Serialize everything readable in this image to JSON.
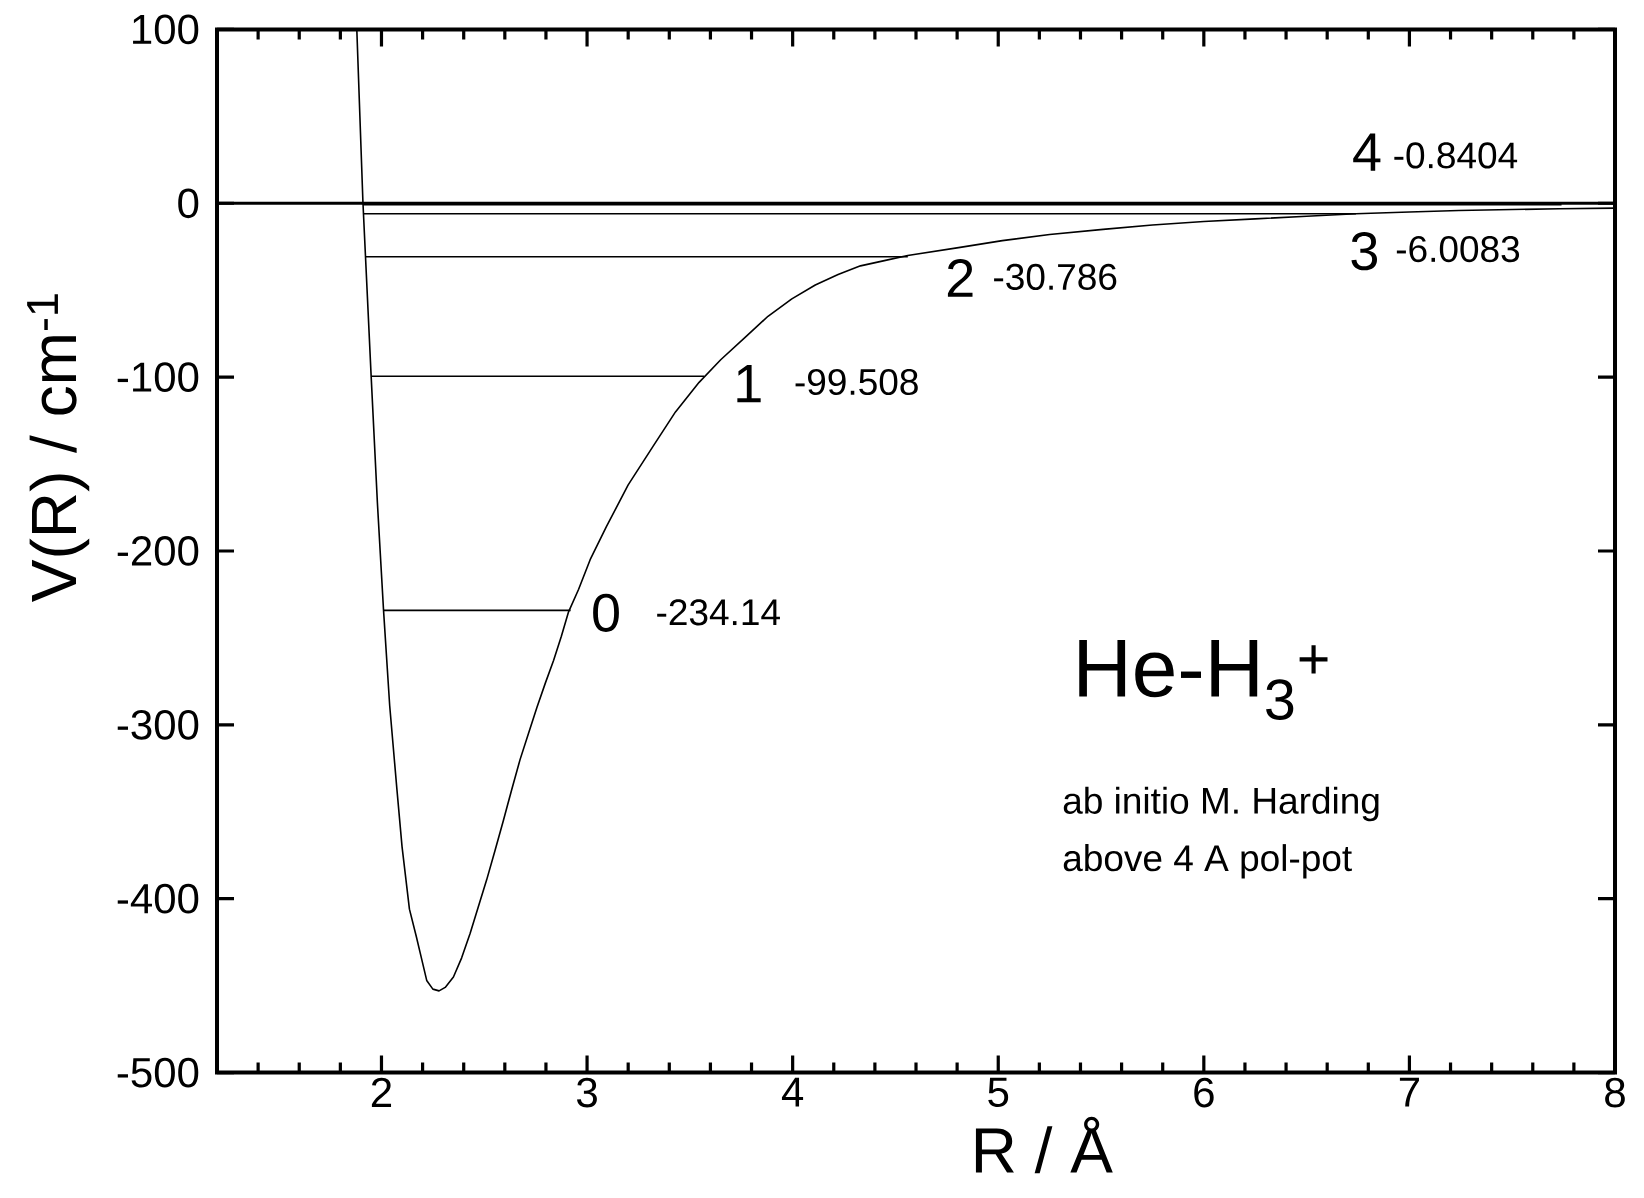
{
  "chart_data": {
    "type": "line",
    "xlabel": "R / Å",
    "ylabel": "V(R) / cm$^{-1}$",
    "annotations": [
      "He-H$_{3}$$^{+}$",
      "ab initio M. Harding",
      "above 4 A pol-pot",
      "-234.14",
      "-99.508",
      "-30.786",
      "-6.0083",
      "-0.8404"
    ],
    "xlim": [
      1.2,
      8
    ],
    "xticks": [
      {
        "value": 1.4,
        "label": null
      },
      {
        "value": 1.6,
        "label": null
      },
      {
        "value": 1.8,
        "label": null
      },
      2,
      {
        "value": 2.2,
        "label": null
      },
      {
        "value": 2.4,
        "label": null
      },
      {
        "value": 2.6,
        "label": null
      },
      {
        "value": 2.8,
        "label": null
      },
      3,
      {
        "value": 3.2,
        "label": null
      },
      {
        "value": 3.4,
        "label": null
      },
      {
        "value": 3.6,
        "label": null
      },
      {
        "value": 3.8,
        "label": null
      },
      4,
      {
        "value": 4.2,
        "label": null
      },
      {
        "value": 4.4,
        "label": null
      },
      {
        "value": 4.6,
        "label": null
      },
      {
        "value": 4.8,
        "label": null
      },
      5,
      {
        "value": 5.2,
        "label": null
      },
      {
        "value": 5.4,
        "label": null
      },
      {
        "value": 5.6,
        "label": null
      },
      {
        "value": 5.8,
        "label": null
      },
      6,
      {
        "value": 6.2,
        "label": null
      },
      {
        "value": 6.4,
        "label": null
      },
      {
        "value": 6.6,
        "label": null
      },
      {
        "value": 6.8,
        "label": null
      },
      7,
      {
        "value": 7.2,
        "label": null
      },
      {
        "value": 7.4,
        "label": null
      },
      {
        "value": 7.6,
        "label": null
      },
      {
        "value": 7.8,
        "label": null
      },
      8
    ],
    "ylim": [
      -500,
      100
    ],
    "yticks": [
      -500,
      -400,
      -300,
      -200,
      -100,
      0,
      100
    ],
    "marker": "none",
    "ref_lines": [
      {
        "axis": "y",
        "value": 0,
        "color": "#000000"
      }
    ],
    "series": [
      {
        "color": "#000000",
        "x": [
          1.88,
          1.895,
          1.91,
          1.93,
          1.95,
          1.98,
          2.01,
          2.04,
          2.075,
          2.1,
          2.136,
          2.17,
          2.188,
          2.22,
          2.25,
          2.28,
          2.31,
          2.35,
          2.39,
          2.431,
          2.47,
          2.512,
          2.553,
          2.593,
          2.634,
          2.674,
          2.715,
          2.756,
          2.797,
          2.837,
          2.875,
          2.91,
          2.959,
          3.015,
          3.094,
          3.2,
          3.32,
          3.43,
          3.545,
          3.65,
          3.77,
          3.88,
          3.996,
          4.11,
          4.221,
          4.33,
          4.446,
          4.56,
          4.807,
          5.02,
          5.25,
          5.51,
          5.75,
          6.0,
          6.25,
          6.5,
          6.74,
          7.0,
          7.24,
          7.5,
          7.73,
          8.0
        ],
        "values": [
          100,
          50,
          0,
          -50,
          -100,
          -172,
          -234,
          -289,
          -337,
          -370,
          -406,
          -422,
          -431,
          -447,
          -452,
          -453,
          -451,
          -445,
          -434,
          -420,
          -405,
          -389,
          -372,
          -355,
          -337,
          -320,
          -305,
          -290,
          -276,
          -263,
          -249,
          -235,
          -222,
          -205,
          -186,
          -162,
          -140,
          -120,
          -103,
          -90,
          -77,
          -65,
          -55,
          -47,
          -41,
          -36,
          -33,
          -30,
          -25.5,
          -21.5,
          -18,
          -15,
          -12.5,
          -10.5,
          -9,
          -7.5,
          -6,
          -5,
          -4.2,
          -3.6,
          -3.2,
          -2.8
        ]
      },
      {
        "name": "0",
        "color": "#000000",
        "x": [
          2.01,
          2.92
        ],
        "values": [
          -234.14,
          -234.14
        ]
      },
      {
        "name": "1",
        "color": "#000000",
        "x": [
          1.95,
          3.57
        ],
        "values": [
          -99.508,
          -99.508
        ]
      },
      {
        "name": "2",
        "color": "#000000",
        "x": [
          1.92,
          4.56
        ],
        "values": [
          -30.786,
          -30.786
        ]
      },
      {
        "name": "3",
        "color": "#000000",
        "x": [
          1.91,
          6.74
        ],
        "values": [
          -6.0083,
          -6.0083
        ]
      },
      {
        "name": "4",
        "color": "#000000",
        "x": [
          1.91,
          7.74
        ],
        "values": [
          -0.8404,
          -0.8404
        ]
      }
    ]
  }
}
